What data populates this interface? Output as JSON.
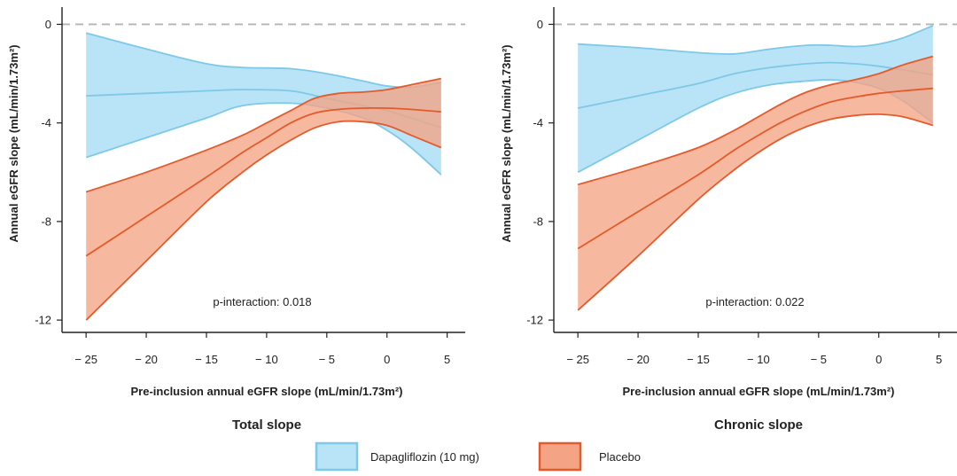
{
  "chart_data": [
    {
      "type": "line",
      "title": "Total slope",
      "xlabel": "Pre-inclusion annual eGFR slope (mL/min/1.73m²)",
      "ylabel": "Annual eGFR slope (mL/min/1.73m²)",
      "xlim": [
        -27,
        6.5
      ],
      "ylim": [
        -12.5,
        0.7
      ],
      "xticks": [
        -25,
        -20,
        -15,
        -10,
        -5,
        0,
        5
      ],
      "xtick_labels": [
        "− 25",
        "− 20",
        "− 15",
        "− 10",
        "− 5",
        "0",
        "5"
      ],
      "yticks": [
        0,
        -4,
        -8,
        -12
      ],
      "ytick_labels": [
        "0",
        "-4",
        "-8",
        "-12"
      ],
      "reference_line": 0,
      "annotation": "p-interaction: 0.018",
      "series": [
        {
          "name": "Dapagliflozin (10 mg)",
          "color": "#7ec8e8",
          "fill": "#b9e3f6",
          "x": [
            -25,
            -20,
            -15,
            -12,
            -8,
            -5,
            -2,
            0,
            2,
            4.5
          ],
          "mean": [
            -2.9,
            -2.8,
            -2.7,
            -2.65,
            -2.7,
            -3.0,
            -3.3,
            -3.5,
            -3.8,
            -4.2
          ],
          "lower": [
            -5.4,
            -4.6,
            -3.8,
            -3.3,
            -3.2,
            -3.4,
            -3.8,
            -4.3,
            -5.0,
            -6.1
          ],
          "upper": [
            -0.35,
            -1.0,
            -1.6,
            -1.75,
            -1.8,
            -2.0,
            -2.3,
            -2.5,
            -2.55,
            -2.35
          ]
        },
        {
          "name": "Placebo",
          "color": "#e55a2b",
          "fill": "#f4a484",
          "x": [
            -25,
            -20,
            -15,
            -12,
            -10,
            -8,
            -6,
            -4,
            -2,
            0,
            2,
            4.5
          ],
          "mean": [
            -9.4,
            -7.8,
            -6.2,
            -5.2,
            -4.6,
            -4.0,
            -3.6,
            -3.45,
            -3.4,
            -3.4,
            -3.45,
            -3.55
          ],
          "lower": [
            -12.0,
            -9.6,
            -7.2,
            -6.0,
            -5.3,
            -4.7,
            -4.2,
            -3.95,
            -3.95,
            -4.1,
            -4.5,
            -5.0
          ],
          "upper": [
            -6.8,
            -6.0,
            -5.1,
            -4.5,
            -4.0,
            -3.5,
            -3.0,
            -2.8,
            -2.75,
            -2.65,
            -2.45,
            -2.2
          ]
        }
      ]
    },
    {
      "type": "line",
      "title": "Chronic slope",
      "xlabel": "Pre-inclusion annual eGFR slope (mL/min/1.73m²)",
      "ylabel": "Annual eGFR slope (mL/min/1.73m²)",
      "xlim": [
        -27,
        6.5
      ],
      "ylim": [
        -12.5,
        0.7
      ],
      "xticks": [
        -25,
        -20,
        -15,
        -10,
        -5,
        0,
        5
      ],
      "xtick_labels": [
        "− 25",
        "− 20",
        "− 15",
        "− 10",
        "− 5",
        "0",
        "5"
      ],
      "yticks": [
        0,
        -4,
        -8,
        -12
      ],
      "ytick_labels": [
        "0",
        "-4",
        "-8",
        "-12"
      ],
      "reference_line": 0,
      "annotation": "p-interaction: 0.022",
      "series": [
        {
          "name": "Dapagliflozin (10 mg)",
          "color": "#7ec8e8",
          "fill": "#b9e3f6",
          "x": [
            -25,
            -20,
            -15,
            -12,
            -9,
            -6,
            -4,
            -2,
            0,
            2,
            4.5
          ],
          "mean": [
            -3.4,
            -2.9,
            -2.4,
            -2.0,
            -1.75,
            -1.6,
            -1.55,
            -1.6,
            -1.7,
            -1.85,
            -2.05
          ],
          "lower": [
            -6.0,
            -4.7,
            -3.4,
            -2.8,
            -2.45,
            -2.3,
            -2.25,
            -2.35,
            -2.6,
            -3.1,
            -4.0
          ],
          "upper": [
            -0.8,
            -0.95,
            -1.15,
            -1.2,
            -1.0,
            -0.85,
            -0.85,
            -0.9,
            -0.8,
            -0.55,
            -0.05
          ]
        },
        {
          "name": "Placebo",
          "color": "#e55a2b",
          "fill": "#f4a484",
          "x": [
            -25,
            -20,
            -15,
            -12,
            -10,
            -8,
            -6,
            -4,
            -2,
            0,
            2,
            4.5
          ],
          "mean": [
            -9.1,
            -7.6,
            -6.1,
            -5.1,
            -4.5,
            -3.95,
            -3.5,
            -3.15,
            -2.95,
            -2.8,
            -2.7,
            -2.6
          ],
          "lower": [
            -11.6,
            -9.4,
            -7.1,
            -5.9,
            -5.2,
            -4.6,
            -4.15,
            -3.85,
            -3.7,
            -3.65,
            -3.75,
            -4.1
          ],
          "upper": [
            -6.5,
            -5.8,
            -5.0,
            -4.3,
            -3.75,
            -3.2,
            -2.75,
            -2.45,
            -2.25,
            -2.0,
            -1.65,
            -1.3
          ]
        }
      ]
    }
  ],
  "legend": {
    "items": [
      {
        "label": "Dapagliflozin (10 mg)",
        "fill": "#b9e3f6",
        "stroke": "#7ec8e8"
      },
      {
        "label": "Placebo",
        "fill": "#f4a484",
        "stroke": "#e55a2b"
      }
    ]
  }
}
